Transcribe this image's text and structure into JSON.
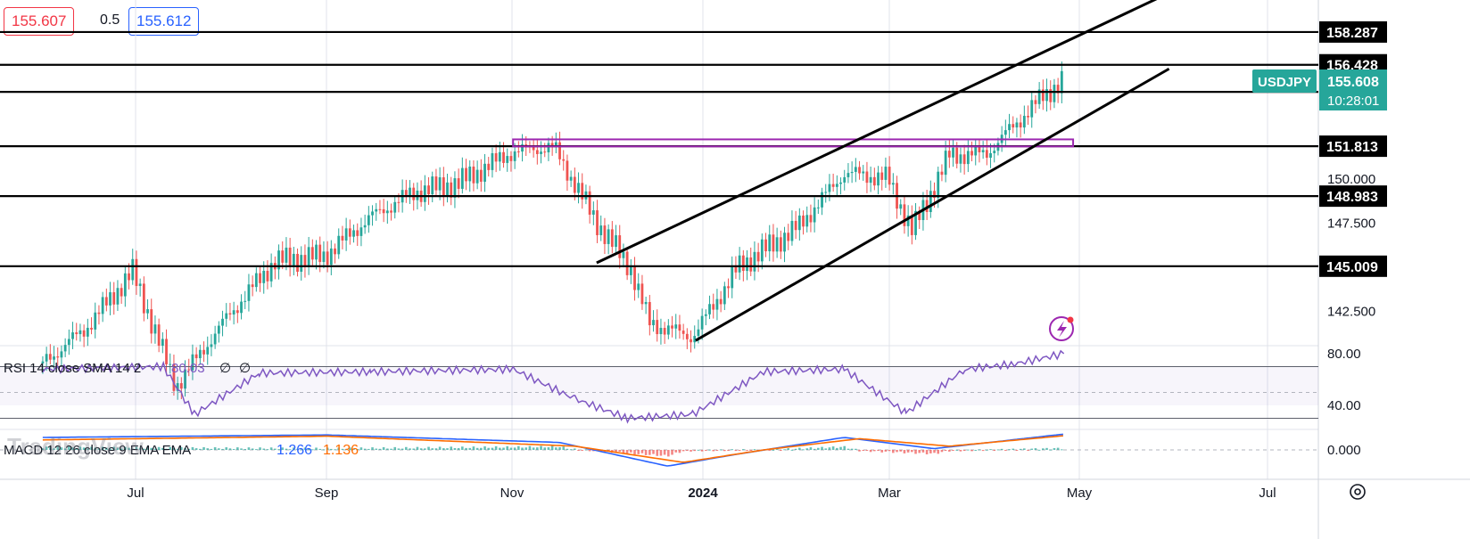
{
  "header": {
    "sell_price": "155.607",
    "spread": "0.5",
    "buy_price": "155.612"
  },
  "indicators": {
    "rsi": {
      "label": "RSI 14 close SMA 14 2",
      "value": "80.03",
      "extra1": "∅",
      "extra2": "∅"
    },
    "macd": {
      "label": "MACD 12 26 close 9 EMA EMA",
      "macd_value": "1.266",
      "signal_value": "1.136"
    }
  },
  "watermark": "TradingView",
  "colors": {
    "up": "#26a69a",
    "down": "#ef5350",
    "accent": "#26a69a",
    "rsi": "#7e57c2",
    "macd": "#2962ff",
    "signal": "#ff6d00",
    "resistance_box": "#9c27b0",
    "level_line": "#000000"
  },
  "chart_data": {
    "type": "candlestick",
    "symbol": "USDJPY",
    "last_price": "155.608",
    "countdown": "10:28:01",
    "x_ticks": [
      "Jul",
      "Sep",
      "Nov",
      "2024",
      "Mar",
      "May",
      "Jul"
    ],
    "y_ticks": [
      "150.000",
      "147.500",
      "142.500"
    ],
    "horizontal_levels": [
      "158.287",
      "156.428",
      "154.893",
      "151.813",
      "148.983",
      "145.009"
    ],
    "resistance_zone": [
      151.8,
      152.2
    ],
    "channel": [
      {
        "from": [
          "2023-11-27",
          145.2
        ],
        "to": [
          "2024-05-30",
          160.5
        ]
      },
      {
        "from": [
          "2023-12-29",
          140.8
        ],
        "to": [
          "2024-05-30",
          156.2
        ]
      }
    ],
    "price_series": [
      [
        "2023-06-01",
        139.5
      ],
      [
        "2023-06-15",
        141.5
      ],
      [
        "2023-06-30",
        144.7
      ],
      [
        "2023-07-14",
        138.2
      ],
      [
        "2023-07-31",
        142.2
      ],
      [
        "2023-08-15",
        145.3
      ],
      [
        "2023-08-31",
        145.6
      ],
      [
        "2023-09-15",
        147.8
      ],
      [
        "2023-09-29",
        149.2
      ],
      [
        "2023-10-13",
        149.7
      ],
      [
        "2023-10-31",
        151.5
      ],
      [
        "2023-11-13",
        151.8
      ],
      [
        "2023-11-27",
        147.5
      ],
      [
        "2023-12-08",
        144.9
      ],
      [
        "2023-12-14",
        141.8
      ],
      [
        "2023-12-28",
        141.0
      ],
      [
        "2024-01-12",
        145.0
      ],
      [
        "2024-01-31",
        147.2
      ],
      [
        "2024-02-15",
        150.3
      ],
      [
        "2024-02-29",
        150.0
      ],
      [
        "2024-03-08",
        147.0
      ],
      [
        "2024-03-20",
        151.3
      ],
      [
        "2024-04-01",
        151.4
      ],
      [
        "2024-04-10",
        153.0
      ],
      [
        "2024-04-19",
        154.6
      ],
      [
        "2024-04-26",
        155.6
      ]
    ],
    "rsi_series": [
      [
        "2023-06-01",
        68
      ],
      [
        "2023-07-10",
        70
      ],
      [
        "2023-07-20",
        33
      ],
      [
        "2023-08-10",
        65
      ],
      [
        "2023-09-15",
        66
      ],
      [
        "2023-10-31",
        68
      ],
      [
        "2023-11-20",
        45
      ],
      [
        "2023-12-07",
        30
      ],
      [
        "2023-12-28",
        33
      ],
      [
        "2024-01-20",
        66
      ],
      [
        "2024-02-15",
        68
      ],
      [
        "2024-03-06",
        34
      ],
      [
        "2024-03-25",
        68
      ],
      [
        "2024-04-10",
        72
      ],
      [
        "2024-04-26",
        80.03
      ]
    ],
    "rsi_levels": [
      40,
      50,
      70
    ],
    "rsi_axis": [
      "80.00",
      "40.00"
    ],
    "macd_series": [
      [
        "2023-06-01",
        1.0
      ],
      [
        "2023-09-01",
        1.2
      ],
      [
        "2023-11-15",
        0.6
      ],
      [
        "2023-12-20",
        -1.3
      ],
      [
        "2024-01-10",
        -0.4
      ],
      [
        "2024-02-15",
        1.0
      ],
      [
        "2024-03-15",
        0.1
      ],
      [
        "2024-04-26",
        1.266
      ]
    ],
    "signal_series": [
      [
        "2023-06-01",
        0.8
      ],
      [
        "2023-09-01",
        1.1
      ],
      [
        "2023-11-20",
        0.3
      ],
      [
        "2023-12-25",
        -1.0
      ],
      [
        "2024-01-20",
        0.0
      ],
      [
        "2024-02-20",
        0.9
      ],
      [
        "2024-03-20",
        0.3
      ],
      [
        "2024-04-26",
        1.136
      ]
    ],
    "macd_axis": [
      "0.000"
    ]
  }
}
